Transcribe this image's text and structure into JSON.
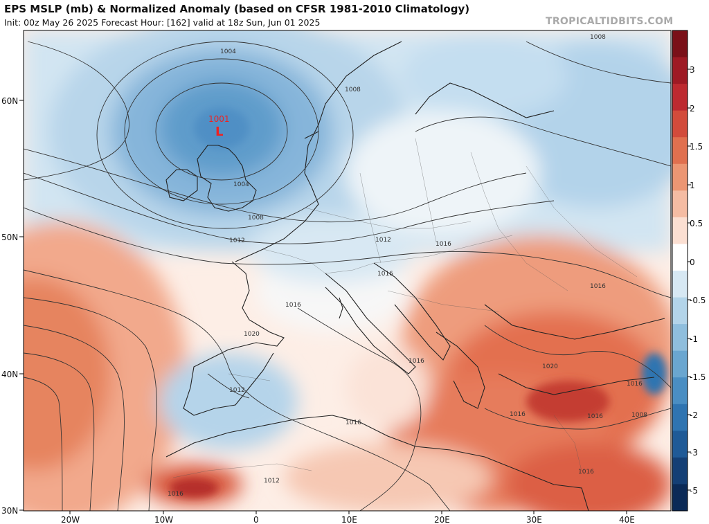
{
  "header": {
    "title": "EPS MSLP (mb) & Normalized Anomaly (based on CFSR 1981-2010 Climatology)",
    "subtitle": "Init: 00z May 26 2025   Forecast Hour: [162]   valid at 18z Sun, Jun 01 2025",
    "brand": "TROPICALTIDBITS.COM"
  },
  "map": {
    "lat_labels": [
      "60N",
      "50N",
      "40N",
      "30N"
    ],
    "lon_labels": [
      "20W",
      "10W",
      "0",
      "10E",
      "20E",
      "30E",
      "40E"
    ],
    "low_center": {
      "symbol": "L",
      "pressure": "1001"
    },
    "contour_labels": [
      "1004",
      "1008",
      "1008",
      "1004",
      "1008",
      "1012",
      "1012",
      "1016",
      "1016",
      "1016",
      "1016",
      "1016",
      "1016",
      "1020",
      "1012",
      "1016",
      "1020",
      "1016",
      "1016",
      "1008",
      "1016",
      "1012",
      "1016"
    ]
  },
  "colorbar": {
    "ticks": [
      "3",
      "2",
      "1.5",
      "1",
      "0.5",
      "0",
      "-0.5",
      "-1",
      "-1.5",
      "-2",
      "-3",
      "-5"
    ],
    "colors": [
      "#7a1018",
      "#9e1a24",
      "#bd2a30",
      "#d24b3b",
      "#e0704f",
      "#ec9673",
      "#f5bca3",
      "#fbdfd2",
      "#ffffff",
      "#d7e8f3",
      "#b3d4e9",
      "#8fbedd",
      "#6aa6d0",
      "#4a8ec3",
      "#2f74b1",
      "#1f5a97",
      "#143f75",
      "#0b2a57"
    ]
  }
}
